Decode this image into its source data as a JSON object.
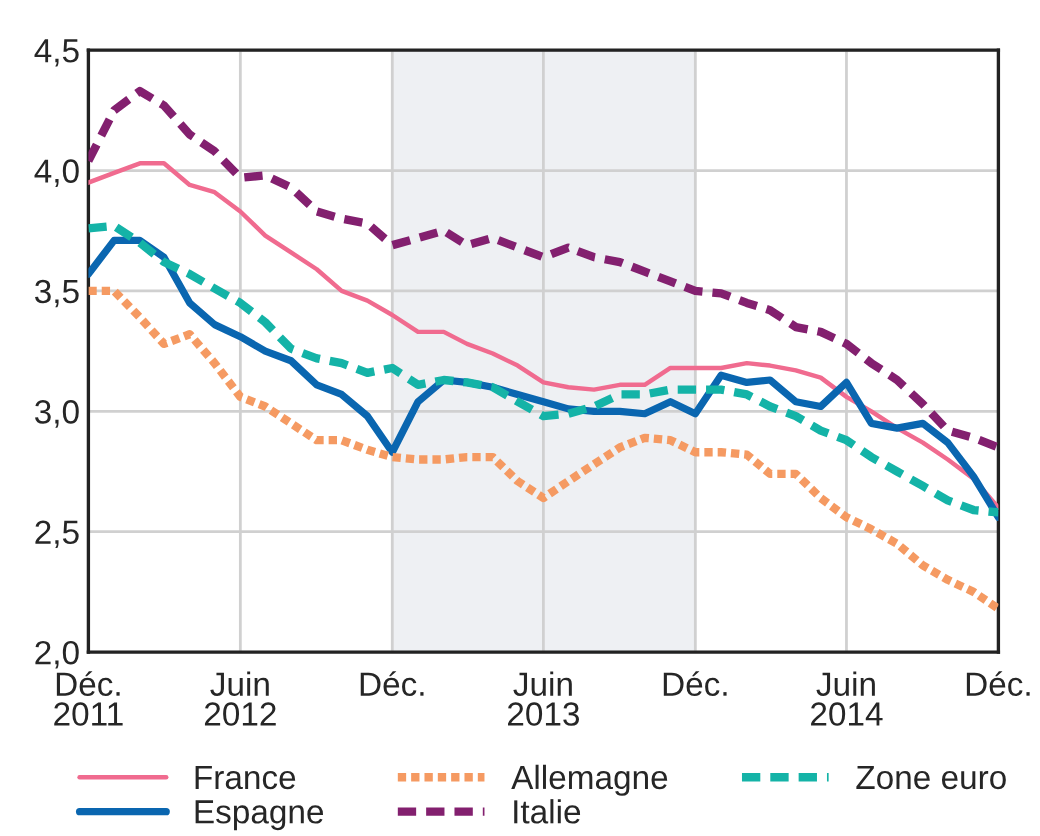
{
  "chart_data": {
    "type": "line",
    "x": [
      "2011-12",
      "2012-01",
      "2012-02",
      "2012-03",
      "2012-04",
      "2012-05",
      "2012-06",
      "2012-07",
      "2012-08",
      "2012-09",
      "2012-10",
      "2012-11",
      "2012-12",
      "2013-01",
      "2013-02",
      "2013-03",
      "2013-04",
      "2013-05",
      "2013-06",
      "2013-07",
      "2013-08",
      "2013-09",
      "2013-10",
      "2013-11",
      "2013-12",
      "2014-01",
      "2014-02",
      "2014-03",
      "2014-04",
      "2014-05",
      "2014-06",
      "2014-07",
      "2014-08",
      "2014-09",
      "2014-10",
      "2014-11",
      "2014-12"
    ],
    "series": [
      {
        "name": "France",
        "color": "#f06b8f",
        "line_style": "solid",
        "values": [
          3.95,
          3.99,
          4.03,
          4.03,
          3.94,
          3.91,
          3.83,
          3.73,
          3.66,
          3.59,
          3.5,
          3.46,
          3.4,
          3.33,
          3.33,
          3.28,
          3.24,
          3.19,
          3.12,
          3.1,
          3.09,
          3.11,
          3.11,
          3.18,
          3.18,
          3.18,
          3.2,
          3.19,
          3.17,
          3.14,
          3.06,
          3.0,
          2.93,
          2.87,
          2.8,
          2.72,
          2.6
        ]
      },
      {
        "name": "Espagne",
        "color": "#0a66b0",
        "line_style": "solid",
        "values": [
          3.57,
          3.71,
          3.71,
          3.64,
          3.45,
          3.36,
          3.31,
          3.25,
          3.21,
          3.11,
          3.07,
          2.98,
          2.83,
          3.04,
          3.13,
          3.12,
          3.1,
          3.07,
          3.04,
          3.01,
          3.0,
          3.0,
          2.99,
          3.04,
          2.99,
          3.15,
          3.12,
          3.13,
          3.04,
          3.02,
          3.12,
          2.95,
          2.93,
          2.95,
          2.87,
          2.73,
          2.56
        ]
      },
      {
        "name": "Allemagne",
        "color": "#f59a62",
        "line_style": "dotted",
        "values": [
          3.5,
          3.5,
          3.39,
          3.28,
          3.32,
          3.2,
          3.06,
          3.02,
          2.95,
          2.88,
          2.88,
          2.84,
          2.81,
          2.8,
          2.8,
          2.81,
          2.81,
          2.71,
          2.64,
          2.71,
          2.78,
          2.85,
          2.89,
          2.88,
          2.83,
          2.83,
          2.82,
          2.74,
          2.74,
          2.64,
          2.56,
          2.51,
          2.45,
          2.36,
          2.3,
          2.25,
          2.18
        ]
      },
      {
        "name": "Italie",
        "color": "#83206f",
        "line_style": "dashed",
        "values": [
          4.04,
          4.25,
          4.33,
          4.27,
          4.15,
          4.08,
          3.97,
          3.98,
          3.93,
          3.83,
          3.8,
          3.78,
          3.69,
          3.72,
          3.75,
          3.69,
          3.72,
          3.68,
          3.64,
          3.68,
          3.64,
          3.62,
          3.58,
          3.54,
          3.5,
          3.49,
          3.45,
          3.42,
          3.35,
          3.33,
          3.28,
          3.2,
          3.13,
          3.03,
          2.92,
          2.89,
          2.85
        ]
      },
      {
        "name": "Zone euro",
        "color": "#14b3a7",
        "line_style": "dashed",
        "values": [
          3.76,
          3.77,
          3.7,
          3.62,
          3.57,
          3.51,
          3.45,
          3.37,
          3.26,
          3.22,
          3.2,
          3.16,
          3.18,
          3.11,
          3.13,
          3.12,
          3.1,
          3.04,
          2.98,
          2.99,
          3.02,
          3.07,
          3.07,
          3.09,
          3.09,
          3.09,
          3.07,
          3.02,
          2.98,
          2.92,
          2.88,
          2.81,
          2.75,
          2.69,
          2.63,
          2.59,
          2.58
        ]
      }
    ],
    "xlim": [
      "2011-12",
      "2014-12"
    ],
    "xticks": [
      {
        "value": "2011-12",
        "label": "Déc.\n2011"
      },
      {
        "value": "2012-06",
        "label": "Juin\n2012"
      },
      {
        "value": "2012-12",
        "label": "Déc."
      },
      {
        "value": "2013-06",
        "label": "Juin\n2013"
      },
      {
        "value": "2013-12",
        "label": "Déc."
      },
      {
        "value": "2014-06",
        "label": "Juin\n2014"
      },
      {
        "value": "2014-12",
        "label": "Déc."
      }
    ],
    "ylim": [
      2.0,
      4.5
    ],
    "yticks": [
      {
        "value": 2.0,
        "label": "2,0"
      },
      {
        "value": 2.5,
        "label": "2,5"
      },
      {
        "value": 3.0,
        "label": "3,0"
      },
      {
        "value": 3.5,
        "label": "3,5"
      },
      {
        "value": 4.0,
        "label": "4,0"
      },
      {
        "value": 4.5,
        "label": "4,5"
      }
    ],
    "bands": [
      {
        "axis": "x",
        "from": "2012-12",
        "to": "2013-12",
        "color": "#eef0f3"
      }
    ],
    "grid": true,
    "legend": "bottom"
  }
}
